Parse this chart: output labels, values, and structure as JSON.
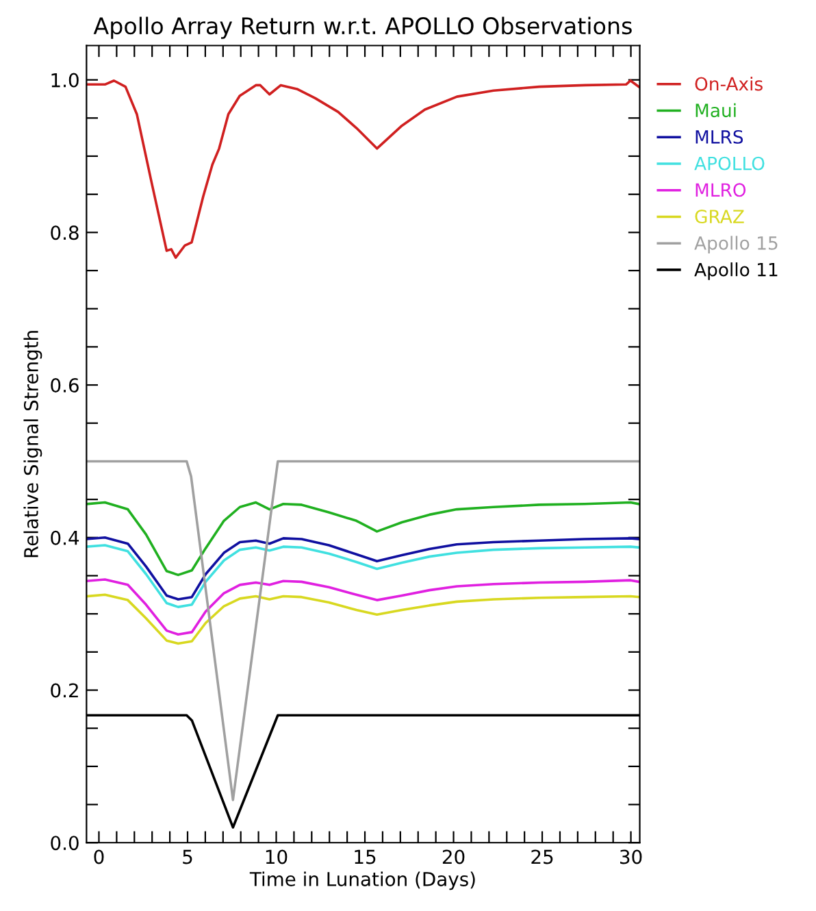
{
  "chart_data": {
    "type": "line",
    "title": "Apollo Array Return w.r.t. APOLLO Observations",
    "xlabel": "Time in Lunation (Days)",
    "ylabel": "Relative Signal Strength",
    "xlim": [
      -0.7,
      30.5
    ],
    "ylim": [
      0,
      1.045
    ],
    "xticks": [
      0,
      {
        "value": 1,
        "label": null
      },
      {
        "value": 2,
        "label": null
      },
      {
        "value": 3,
        "label": null
      },
      {
        "value": 4,
        "label": null
      },
      5,
      {
        "value": 6,
        "label": null
      },
      {
        "value": 7,
        "label": null
      },
      {
        "value": 8,
        "label": null
      },
      {
        "value": 9,
        "label": null
      },
      10,
      {
        "value": 11,
        "label": null
      },
      {
        "value": 12,
        "label": null
      },
      {
        "value": 13,
        "label": null
      },
      {
        "value": 14,
        "label": null
      },
      15,
      {
        "value": 16,
        "label": null
      },
      {
        "value": 17,
        "label": null
      },
      {
        "value": 18,
        "label": null
      },
      {
        "value": 19,
        "label": null
      },
      20,
      {
        "value": 21,
        "label": null
      },
      {
        "value": 22,
        "label": null
      },
      {
        "value": 23,
        "label": null
      },
      {
        "value": 24,
        "label": null
      },
      25,
      {
        "value": 26,
        "label": null
      },
      {
        "value": 27,
        "label": null
      },
      {
        "value": 28,
        "label": null
      },
      {
        "value": 29,
        "label": null
      },
      30
    ],
    "yticks": [
      {
        "value": 0,
        "label": "0.0"
      },
      {
        "value": 0.05,
        "label": null
      },
      {
        "value": 0.1,
        "label": null
      },
      {
        "value": 0.15,
        "label": null
      },
      0.2,
      {
        "value": 0.25,
        "label": null
      },
      {
        "value": 0.3,
        "label": null
      },
      {
        "value": 0.35,
        "label": null
      },
      0.4,
      {
        "value": 0.45,
        "label": null
      },
      {
        "value": 0.5,
        "label": null
      },
      {
        "value": 0.55,
        "label": null
      },
      0.6,
      {
        "value": 0.65,
        "label": null
      },
      {
        "value": 0.7,
        "label": null
      },
      {
        "value": 0.75,
        "label": null
      },
      0.8,
      {
        "value": 0.85,
        "label": null
      },
      {
        "value": 0.9,
        "label": null
      },
      {
        "value": 0.95,
        "label": null
      },
      {
        "value": 1.0,
        "label": "1.0"
      }
    ],
    "grid": false,
    "legend": "top right",
    "line_style": "solid",
    "marker": "none",
    "x": [
      -0.7,
      0.34,
      1.63,
      2.66,
      3.82,
      4.47,
      5.24,
      6.02,
      7.05,
      7.95,
      8.85,
      9.62,
      10.4,
      11.43,
      12.97,
      14.52,
      15.68,
      17.09,
      18.64,
      20.18,
      22.25,
      24.82,
      27.4,
      29.98,
      30.45
    ],
    "series": [
      {
        "name": "On-Axis",
        "color": "#d02020",
        "x": [
          -0.7,
          0.34,
          0.85,
          1.5,
          2.14,
          2.92,
          3.82,
          4.08,
          4.33,
          4.85,
          5.23,
          5.88,
          6.4,
          6.78,
          7.3,
          7.94,
          8.85,
          9.1,
          9.62,
          10.26,
          11.17,
          12.2,
          13.49,
          14.52,
          15.68,
          17.09,
          18.38,
          20.19,
          22.25,
          24.83,
          27.41,
          29.73,
          29.98,
          30.45
        ],
        "values": [
          0.994,
          0.994,
          0.999,
          0.991,
          0.955,
          0.871,
          0.776,
          0.778,
          0.767,
          0.783,
          0.787,
          0.847,
          0.889,
          0.91,
          0.955,
          0.979,
          0.993,
          0.993,
          0.981,
          0.993,
          0.988,
          0.976,
          0.958,
          0.937,
          0.91,
          0.94,
          0.961,
          0.978,
          0.986,
          0.991,
          0.993,
          0.994,
          0.999,
          0.991
        ]
      },
      {
        "name": "Maui",
        "color": "#20b020",
        "values": [
          0.444,
          0.446,
          0.437,
          0.404,
          0.356,
          0.351,
          0.357,
          0.386,
          0.422,
          0.44,
          0.446,
          0.437,
          0.444,
          0.443,
          0.433,
          0.422,
          0.408,
          0.42,
          0.43,
          0.437,
          0.44,
          0.443,
          0.444,
          0.446,
          0.444
        ]
      },
      {
        "name": "MLRS",
        "color": "#1010a0",
        "values": [
          0.398,
          0.4,
          0.392,
          0.362,
          0.324,
          0.319,
          0.322,
          0.352,
          0.38,
          0.394,
          0.396,
          0.392,
          0.399,
          0.398,
          0.39,
          0.378,
          0.369,
          0.377,
          0.385,
          0.391,
          0.394,
          0.396,
          0.398,
          0.399,
          0.398
        ]
      },
      {
        "name": "APOLLO",
        "color": "#40e0e0",
        "values": [
          0.388,
          0.39,
          0.382,
          0.352,
          0.314,
          0.309,
          0.312,
          0.342,
          0.37,
          0.384,
          0.387,
          0.383,
          0.388,
          0.387,
          0.379,
          0.368,
          0.359,
          0.367,
          0.375,
          0.38,
          0.384,
          0.386,
          0.387,
          0.388,
          0.387
        ]
      },
      {
        "name": "MLRO",
        "color": "#e020e0",
        "values": [
          0.343,
          0.345,
          0.338,
          0.312,
          0.278,
          0.273,
          0.276,
          0.303,
          0.327,
          0.338,
          0.341,
          0.338,
          0.343,
          0.342,
          0.335,
          0.325,
          0.318,
          0.324,
          0.331,
          0.336,
          0.339,
          0.341,
          0.342,
          0.344,
          0.342
        ]
      },
      {
        "name": "GRAZ",
        "color": "#d8d820",
        "values": [
          0.323,
          0.325,
          0.318,
          0.294,
          0.265,
          0.261,
          0.264,
          0.288,
          0.31,
          0.32,
          0.323,
          0.319,
          0.323,
          0.322,
          0.315,
          0.305,
          0.299,
          0.305,
          0.311,
          0.316,
          0.319,
          0.321,
          0.322,
          0.323,
          0.322
        ]
      },
      {
        "name": "Apollo 15",
        "color": "#a0a0a0",
        "x": [
          -0.7,
          4.95,
          5.2,
          7.56,
          10.09,
          30.5
        ],
        "values": [
          0.5,
          0.5,
          0.48,
          0.056,
          0.5,
          0.5
        ]
      },
      {
        "name": "Apollo 11",
        "color": "#000000",
        "x": [
          -0.7,
          4.95,
          5.25,
          7.56,
          10.09,
          30.5
        ],
        "values": [
          0.167,
          0.167,
          0.16,
          0.02,
          0.167,
          0.167
        ]
      }
    ]
  }
}
